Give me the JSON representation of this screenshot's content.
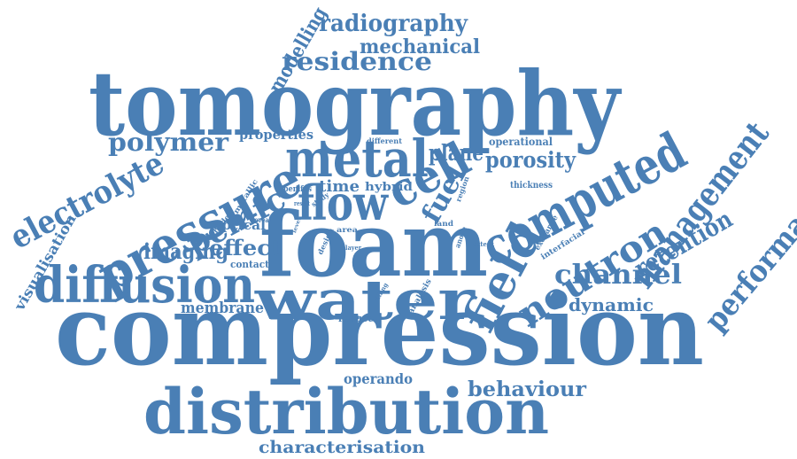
{
  "cloud": {
    "color": "#4a7fb5",
    "words": [
      "tomography",
      "compression",
      "distribution",
      "foam",
      "water",
      "diffusion",
      "pressure",
      "metal",
      "flow",
      "cell",
      "computed",
      "field",
      "neutron",
      "management",
      "performance",
      "electrolyte",
      "pemfc",
      "residence",
      "radiography",
      "mechanical",
      "modelling",
      "polymer",
      "properties",
      "plane",
      "porosity",
      "time",
      "hybrid",
      "fuel",
      "channel",
      "dynamic",
      "retention",
      "imaging",
      "effect",
      "optical",
      "contact",
      "membrane",
      "behaviour",
      "operando",
      "characterisation",
      "visualisation",
      "operational",
      "thickness",
      "different",
      "metallic",
      "pemfcs",
      "study",
      "result",
      "reveal",
      "cathode",
      "level",
      "area",
      "layer",
      "design",
      "land",
      "region",
      "anode",
      "extent",
      "exchange",
      "interfacial",
      "analysis",
      "filling",
      "reduce"
    ]
  }
}
